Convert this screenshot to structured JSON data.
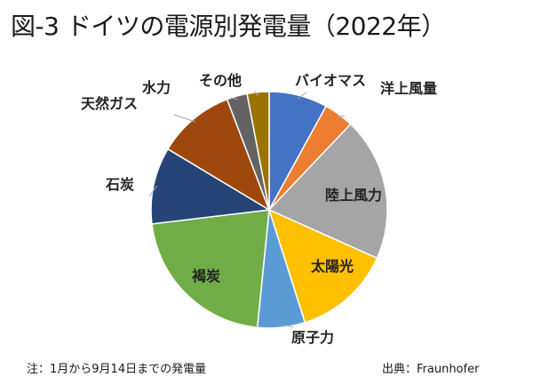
{
  "chart_data": {
    "type": "pie",
    "title": "図-3 ドイツの電源別発電量（2022年）",
    "slices": [
      {
        "label": "バイオマス",
        "value": 8.0,
        "color": "#4472C4"
      },
      {
        "label": "洋上風量",
        "value": 4.1,
        "color": "#ED7D31"
      },
      {
        "label": "陸上風力",
        "value": 19.6,
        "color": "#A5A5A5"
      },
      {
        "label": "太陽光",
        "value": 13.4,
        "color": "#FFC000"
      },
      {
        "label": "原子力",
        "value": 6.5,
        "color": "#5B9BD5"
      },
      {
        "label": "褐炭",
        "value": 21.5,
        "color": "#70AD47"
      },
      {
        "label": "石炭",
        "value": 10.5,
        "color": "#264478"
      },
      {
        "label": "天然ガス",
        "value": 10.6,
        "color": "#9E480E"
      },
      {
        "label": "水力",
        "value": 2.8,
        "color": "#636363"
      },
      {
        "label": "その他",
        "value": 3.0,
        "color": "#997300"
      }
    ]
  },
  "footnote": "注：1月から9月14日までの発電量",
  "source": "出典：Fraunhofer"
}
